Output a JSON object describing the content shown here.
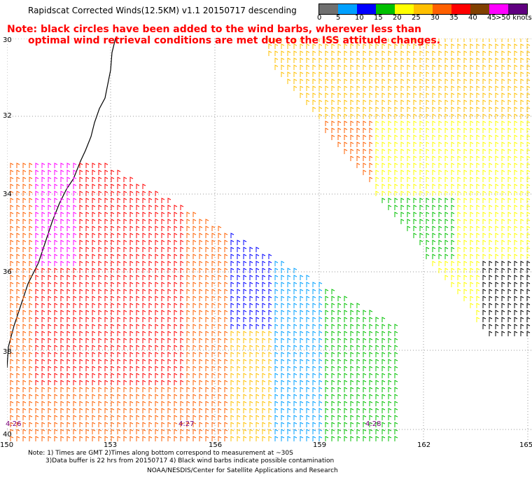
{
  "title": "Rapidscat Corrected Winds(12.5KM) v1.1 20150717 descending",
  "note_line1": "Note: black circles have been added to the wind barbs, wherever less than",
  "note_line2": "optimal wind retrieval conditions are met due to the ISS attitude changes.",
  "scale": {
    "labels": [
      "0",
      "5",
      "10",
      "15",
      "20",
      "25",
      "30",
      "35",
      "40",
      "45",
      ">50 knots"
    ],
    "colors": [
      "#707070",
      "#00a0ff",
      "#0000ff",
      "#00c000",
      "#ffff00",
      "#ffc000",
      "#ff6000",
      "#ff0000",
      "#804000",
      "#ff00ff",
      "#600080"
    ]
  },
  "lat_labels": [
    "30",
    "32",
    "34",
    "36",
    "38",
    "40"
  ],
  "lon_labels": [
    "150",
    "153",
    "156",
    "159",
    "162",
    "165"
  ],
  "times": [
    "4:26",
    "4:27",
    "4:28"
  ],
  "footer": {
    "line1": "Note: 1) Times are GMT 2)Times along bottom correspond to measurement at ~30S",
    "line2": "3)Data buffer is 22 hrs from 20150717 4) Black wind barbs indicate possible contamination",
    "line3": "NOAA/NESDIS/Center for Satellite Applications and Research"
  }
}
